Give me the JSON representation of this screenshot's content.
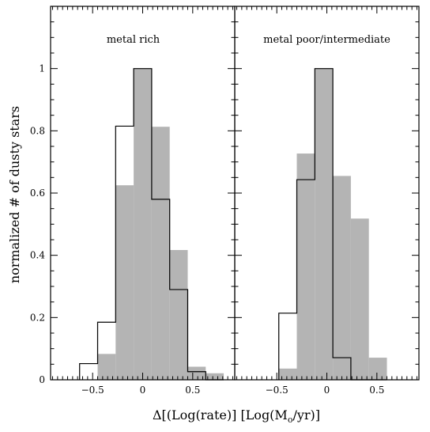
{
  "chart_data": {
    "type": "bar",
    "ylabel": "normalized # of dusty stars",
    "xlabel": "Δ[(Log(rate)] [Log(M",
    "xlabel_sub": "o",
    "xlabel_end": "/yr)]",
    "ylim": [
      0,
      1.2
    ],
    "y_ticks": [
      0,
      0.2,
      0.4,
      0.6,
      0.8,
      1
    ],
    "y_tick_labels": [
      "0",
      "0.2",
      "0.4",
      "0.6",
      "0.8",
      "1"
    ],
    "x_ticks": [
      -0.5,
      0,
      0.5
    ],
    "x_tick_labels": [
      "−0.5",
      "0",
      "0.5"
    ],
    "bin_width": 0.18,
    "panels": [
      {
        "label": "metal rich",
        "xlim": [
          -0.92,
          0.92
        ],
        "bin_starts": [
          -0.63,
          -0.45,
          -0.27,
          -0.09,
          0.09,
          0.27,
          0.45,
          0.63
        ],
        "series": [
          {
            "kind": "filled",
            "values": [
              0,
              0.083,
              0.625,
              1.0,
              0.813,
              0.417,
              0.042,
              0.021
            ]
          },
          {
            "kind": "outline",
            "values": [
              0.052,
              0.185,
              0.815,
              1.0,
              0.58,
              0.29,
              0.026,
              0
            ]
          }
        ]
      },
      {
        "label": "metal poor/intermediate",
        "xlim": [
          -0.92,
          0.92
        ],
        "bin_starts": [
          -0.48,
          -0.3,
          -0.12,
          0.06,
          0.24,
          0.42
        ],
        "series": [
          {
            "kind": "filled",
            "values": [
              0.036,
              0.727,
              1.0,
              0.655,
              0.518,
              0.071
            ]
          },
          {
            "kind": "outline",
            "values": [
              0.214,
              0.643,
              1.0,
              0.071,
              0,
              0
            ]
          }
        ]
      }
    ],
    "colors": {
      "fill": "#b4b4b4",
      "outline": "#000000"
    }
  }
}
